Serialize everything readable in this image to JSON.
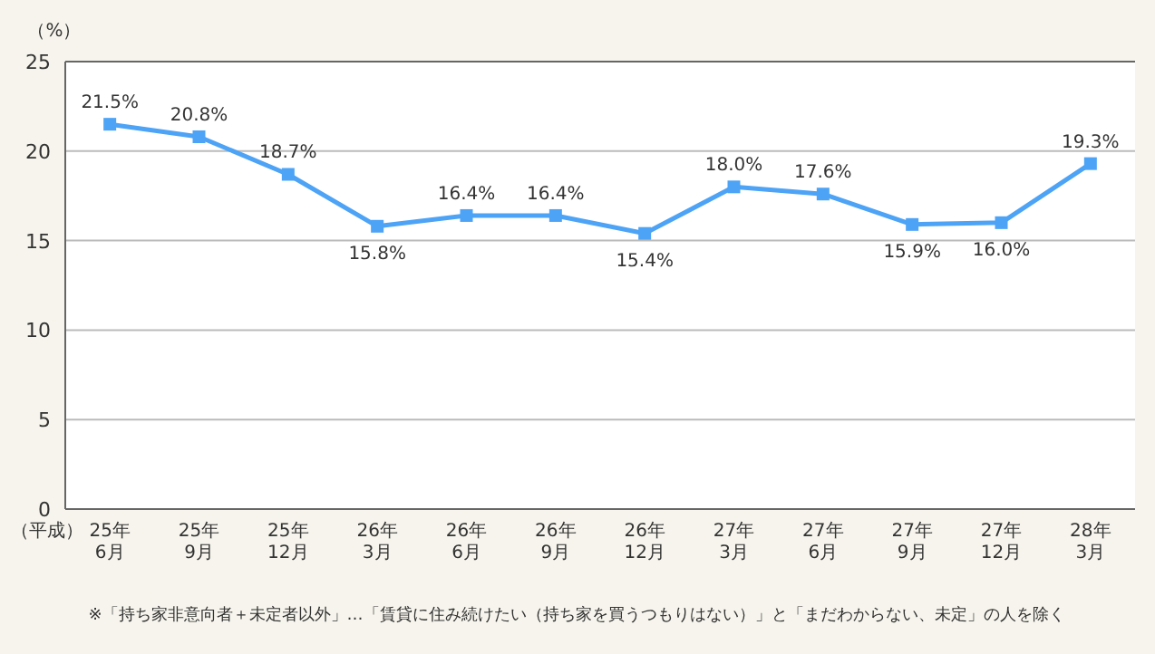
{
  "chart_data": {
    "type": "line",
    "xlabel": "（平成）",
    "ylabel": "（%）",
    "categories": [
      "25年\n6月",
      "25年\n9月",
      "25年\n12月",
      "26年\n3月",
      "26年\n6月",
      "26年\n9月",
      "26年\n12月",
      "27年\n3月",
      "27年\n6月",
      "27年\n9月",
      "27年\n12月",
      "28年\n3月"
    ],
    "series": [
      {
        "color": "#4da3f5",
        "values": [
          21.5,
          20.8,
          18.7,
          15.8,
          16.4,
          16.4,
          15.4,
          18.0,
          17.6,
          15.9,
          16.0,
          19.3
        ],
        "value_labels": [
          "21.5%",
          "20.8%",
          "18.7%",
          "15.8%",
          "16.4%",
          "16.4%",
          "15.4%",
          "18.0%",
          "17.6%",
          "15.9%",
          "16.0%",
          "19.3%"
        ]
      }
    ],
    "ylim": [
      0,
      25
    ],
    "yticks": [
      0,
      5,
      10,
      15,
      20,
      25
    ],
    "grid": "y",
    "marker": "square",
    "line_style": "solid",
    "annotations": [
      "※「持ち家非意向者＋未定者以外」…「賃貸に住み続けたい（持ち家を買うつもりはない）」と「まだわからない、未定」の人を除く"
    ]
  }
}
